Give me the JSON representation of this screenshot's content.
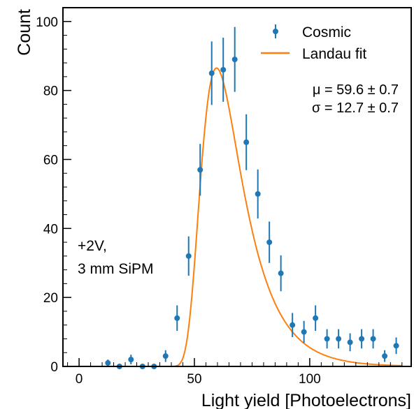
{
  "chart_data": {
    "type": "scatter",
    "xlabel": "Light yield [Photoelectrons]",
    "ylabel": "Count",
    "xlim": [
      -7,
      144
    ],
    "ylim": [
      0,
      104
    ],
    "xticks": [
      0,
      50,
      100
    ],
    "yticks": [
      0,
      20,
      40,
      60,
      80,
      100
    ],
    "grid": false,
    "legend_position": "top-right",
    "colors": {
      "data": "#1f77b4",
      "fit": "#ff7f0e"
    },
    "series": [
      {
        "name": "Cosmic",
        "kind": "errorbar",
        "x": [
          12.5,
          17.5,
          22.5,
          27.5,
          32.5,
          37.5,
          42.5,
          47.5,
          52.5,
          57.5,
          62.5,
          67.5,
          72.5,
          77.5,
          82.5,
          87.5,
          92.5,
          97.5,
          102.5,
          107.5,
          112.5,
          117.5,
          122.5,
          127.5,
          132.5,
          137.5
        ],
        "y": [
          1,
          0,
          2,
          0,
          0,
          3,
          14,
          32,
          57,
          85,
          86,
          89,
          65,
          50,
          36,
          27,
          12,
          10,
          14,
          8,
          8,
          7,
          8,
          8,
          3,
          6
        ],
        "yerr": [
          1.0,
          0.5,
          1.4,
          0.5,
          0.5,
          1.7,
          3.7,
          5.7,
          7.5,
          9.2,
          9.3,
          9.4,
          8.1,
          7.1,
          6.0,
          5.2,
          3.5,
          3.2,
          3.7,
          2.8,
          2.8,
          2.6,
          2.8,
          2.8,
          1.7,
          2.4
        ]
      },
      {
        "name": "Landau fit",
        "kind": "line",
        "x_range": [
          5,
          140
        ],
        "peak_x": 59.6,
        "peak_y": 86.5
      }
    ],
    "annotations": {
      "fit_mu": "μ = 59.6 ± 0.7",
      "fit_sigma": "σ = 12.7 ± 0.7",
      "condition_line1": "+2V,",
      "condition_line2": "3 mm SiPM"
    }
  }
}
